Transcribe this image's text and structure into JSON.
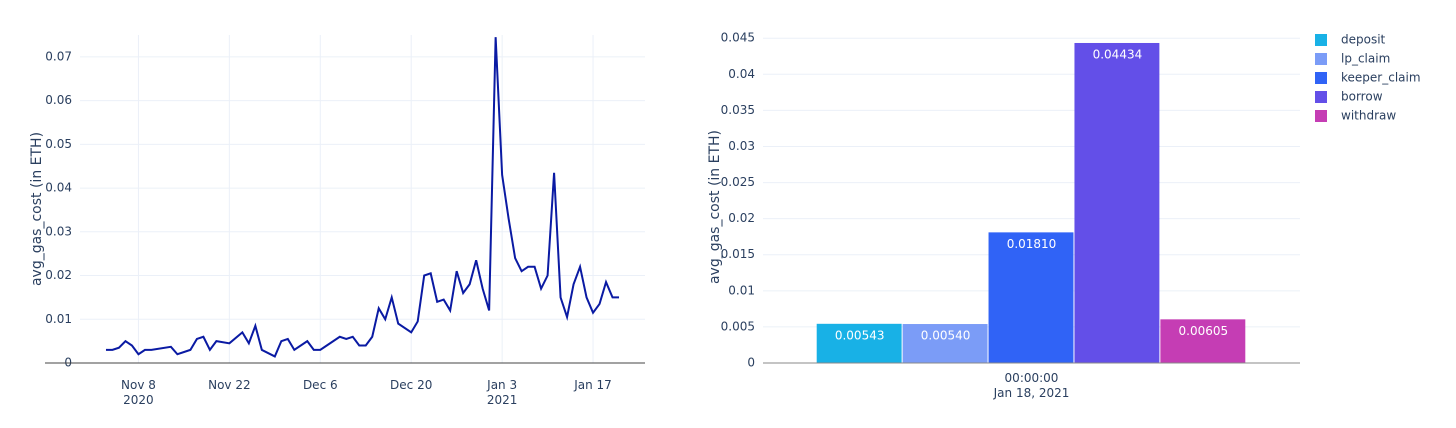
{
  "chart_data": [
    {
      "type": "line",
      "ylabel": "avg_gas_cost (in ETH)",
      "color": "#0a1aa3",
      "grid": true,
      "x": [
        "2020-11-03",
        "2020-11-04",
        "2020-11-05",
        "2020-11-06",
        "2020-11-07",
        "2020-11-08",
        "2020-11-09",
        "2020-11-10",
        "2020-11-13",
        "2020-11-14",
        "2020-11-16",
        "2020-11-17",
        "2020-11-18",
        "2020-11-19",
        "2020-11-20",
        "2020-11-22",
        "2020-11-24",
        "2020-11-25",
        "2020-11-26",
        "2020-11-27",
        "2020-11-29",
        "2020-11-30",
        "2020-12-01",
        "2020-12-02",
        "2020-12-04",
        "2020-12-05",
        "2020-12-06",
        "2020-12-07",
        "2020-12-09",
        "2020-12-10",
        "2020-12-11",
        "2020-12-12",
        "2020-12-13",
        "2020-12-14",
        "2020-12-15",
        "2020-12-16",
        "2020-12-17",
        "2020-12-18",
        "2020-12-20",
        "2020-12-21",
        "2020-12-22",
        "2020-12-23",
        "2020-12-24",
        "2020-12-25",
        "2020-12-26",
        "2020-12-27",
        "2020-12-28",
        "2020-12-29",
        "2020-12-30",
        "2020-12-31",
        "2021-01-01",
        "2021-01-02",
        "2021-01-03",
        "2021-01-04",
        "2021-01-05",
        "2021-01-06",
        "2021-01-07",
        "2021-01-08",
        "2021-01-09",
        "2021-01-10",
        "2021-01-11",
        "2021-01-12",
        "2021-01-13",
        "2021-01-14",
        "2021-01-15",
        "2021-01-16",
        "2021-01-17",
        "2021-01-18",
        "2021-01-19",
        "2021-01-20",
        "2021-01-21"
      ],
      "values": [
        0.003,
        0.003,
        0.0035,
        0.005,
        0.004,
        0.002,
        0.003,
        0.003,
        0.0037,
        0.002,
        0.003,
        0.0055,
        0.006,
        0.003,
        0.005,
        0.0045,
        0.007,
        0.0045,
        0.0085,
        0.003,
        0.0015,
        0.005,
        0.0055,
        0.003,
        0.005,
        0.003,
        0.003,
        0.004,
        0.006,
        0.0055,
        0.006,
        0.004,
        0.004,
        0.006,
        0.0125,
        0.01,
        0.015,
        0.009,
        0.007,
        0.0095,
        0.02,
        0.0205,
        0.014,
        0.0145,
        0.012,
        0.021,
        0.016,
        0.018,
        0.0235,
        0.017,
        0.012,
        0.0745,
        0.043,
        0.033,
        0.024,
        0.021,
        0.022,
        0.022,
        0.017,
        0.02,
        0.0435,
        0.015,
        0.0105,
        0.018,
        0.022,
        0.015,
        0.0115,
        0.0135,
        0.0185,
        0.015,
        0.015
      ],
      "xlim": [
        "2020-10-30",
        "2021-01-25"
      ],
      "xticks": [
        {
          "value": "2020-11-08",
          "label": "Nov 8\n2020"
        },
        {
          "value": "2020-11-22",
          "label": "Nov 22"
        },
        {
          "value": "2020-12-06",
          "label": "Dec 6"
        },
        {
          "value": "2020-12-20",
          "label": "Dec 20"
        },
        {
          "value": "2021-01-03",
          "label": "Jan 3\n2021"
        },
        {
          "value": "2021-01-17",
          "label": "Jan 17"
        }
      ],
      "ylim": [
        0,
        0.075
      ],
      "yticks": [
        0,
        0.01,
        0.02,
        0.03,
        0.04,
        0.05,
        0.06,
        0.07
      ]
    },
    {
      "type": "bar",
      "ylabel": "avg_gas_cost (in ETH)",
      "grid": true,
      "legend": "top-right",
      "categories": [
        "00:00:00\nJan 18, 2021"
      ],
      "series": [
        {
          "name": "deposit",
          "color": "#18b1e6",
          "values": [
            0.00543
          ],
          "value_labels": [
            "0.00543"
          ]
        },
        {
          "name": "lp_claim",
          "color": "#7b9cf7",
          "values": [
            0.0054
          ],
          "value_labels": [
            "0.00540"
          ]
        },
        {
          "name": "keeper_claim",
          "color": "#3063f6",
          "values": [
            0.0181
          ],
          "value_labels": [
            "0.01810"
          ]
        },
        {
          "name": "borrow",
          "color": "#634fe8",
          "values": [
            0.04434
          ],
          "value_labels": [
            "0.04434"
          ]
        },
        {
          "name": "withdraw",
          "color": "#c53db4",
          "values": [
            0.00605
          ],
          "value_labels": [
            "0.00605"
          ]
        }
      ],
      "ylim": [
        0,
        0.046
      ],
      "yticks": [
        0,
        0.005,
        0.01,
        0.015,
        0.02,
        0.025,
        0.03,
        0.035,
        0.04,
        0.045
      ]
    }
  ]
}
